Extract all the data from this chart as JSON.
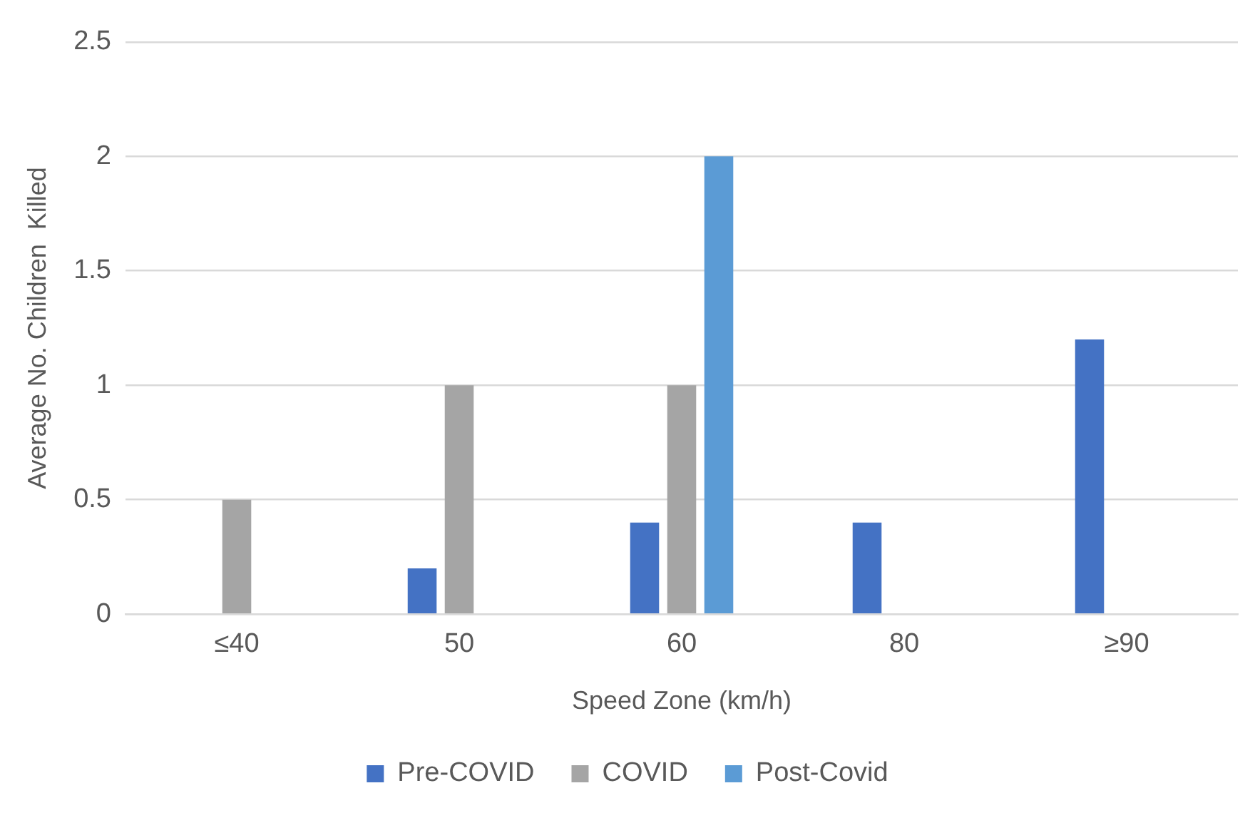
{
  "chart_data": {
    "type": "bar",
    "xlabel": "Speed Zone (km/h)",
    "ylabel": "Average No. Children  Killed",
    "categories": [
      "≤40",
      "50",
      "60",
      "80",
      "≥90"
    ],
    "series": [
      {
        "name": "Pre-COVID",
        "color": "#4472c4",
        "values": [
          0,
          0.2,
          0.4,
          0.4,
          1.2
        ]
      },
      {
        "name": "COVID",
        "color": "#a5a5a5",
        "values": [
          0.5,
          1,
          1,
          0,
          0
        ]
      },
      {
        "name": "Post-Covid",
        "color": "#5b9bd5",
        "values": [
          0,
          0,
          2,
          0,
          0
        ]
      }
    ],
    "ylim": [
      0,
      2.5
    ],
    "yticks": [
      0,
      0.5,
      1,
      1.5,
      2,
      2.5
    ],
    "grid": "y",
    "legend": "bottom"
  }
}
